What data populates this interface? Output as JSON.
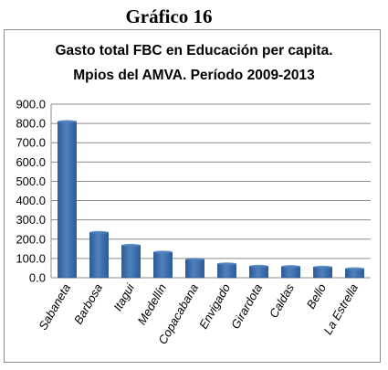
{
  "figure_heading": "Gráfico 16",
  "chart_data": {
    "type": "bar",
    "title_line1": "Gasto total FBC en Educación   per capita.",
    "title_line2": "Mpios del AMVA. Período 2009-2013",
    "xlabel": "",
    "ylabel": "",
    "categories": [
      "Sabaneta",
      "Barbosa",
      "Itagui",
      "Medellín",
      "Copacabana",
      "Envigado",
      "Girardota",
      "Caldas",
      "Bello",
      "La Estrella"
    ],
    "values": [
      810,
      235,
      168,
      133,
      95,
      72,
      60,
      58,
      55,
      47
    ],
    "ylim": [
      0,
      900
    ],
    "yticks": [
      "0.0",
      "100.0",
      "200.0",
      "300.0",
      "400.0",
      "500.0",
      "600.0",
      "700.0",
      "800.0",
      "900.0"
    ],
    "grid": true,
    "legend": "none",
    "bar_color": "#4f81bd",
    "bar_dark": "#2c5a99"
  }
}
